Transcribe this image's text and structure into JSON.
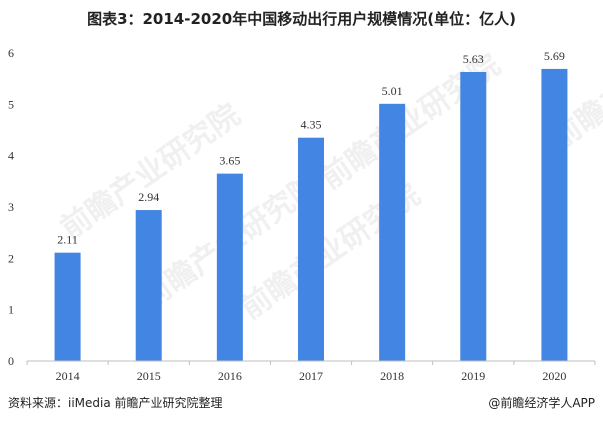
{
  "watermark": {
    "text": "前瞻产业研究院",
    "sub": "www.qianzhan.com"
  },
  "footer": {
    "source": "资料来源：iiMedia 前瞻产业研究院整理",
    "credit": "@前瞻经济学人APP"
  },
  "colors": {
    "bar": "#4285e2",
    "axis": "#bfbfbf"
  },
  "chart_data": {
    "type": "bar",
    "title": "图表3：2014-2020年中国移动出行用户规模情况(单位：亿人)",
    "xlabel": "",
    "ylabel": "",
    "categories": [
      "2014",
      "2015",
      "2016",
      "2017",
      "2018",
      "2019",
      "2020"
    ],
    "values": [
      2.11,
      2.94,
      3.65,
      4.35,
      5.01,
      5.63,
      5.69
    ],
    "labels": [
      "2.11",
      "2.94",
      "3.65",
      "4.35",
      "5.01",
      "5.63",
      "5.69"
    ],
    "yticks": [
      "0",
      "1",
      "2",
      "3",
      "4",
      "5",
      "6"
    ],
    "ylim": [
      0,
      6
    ],
    "grid": false
  }
}
